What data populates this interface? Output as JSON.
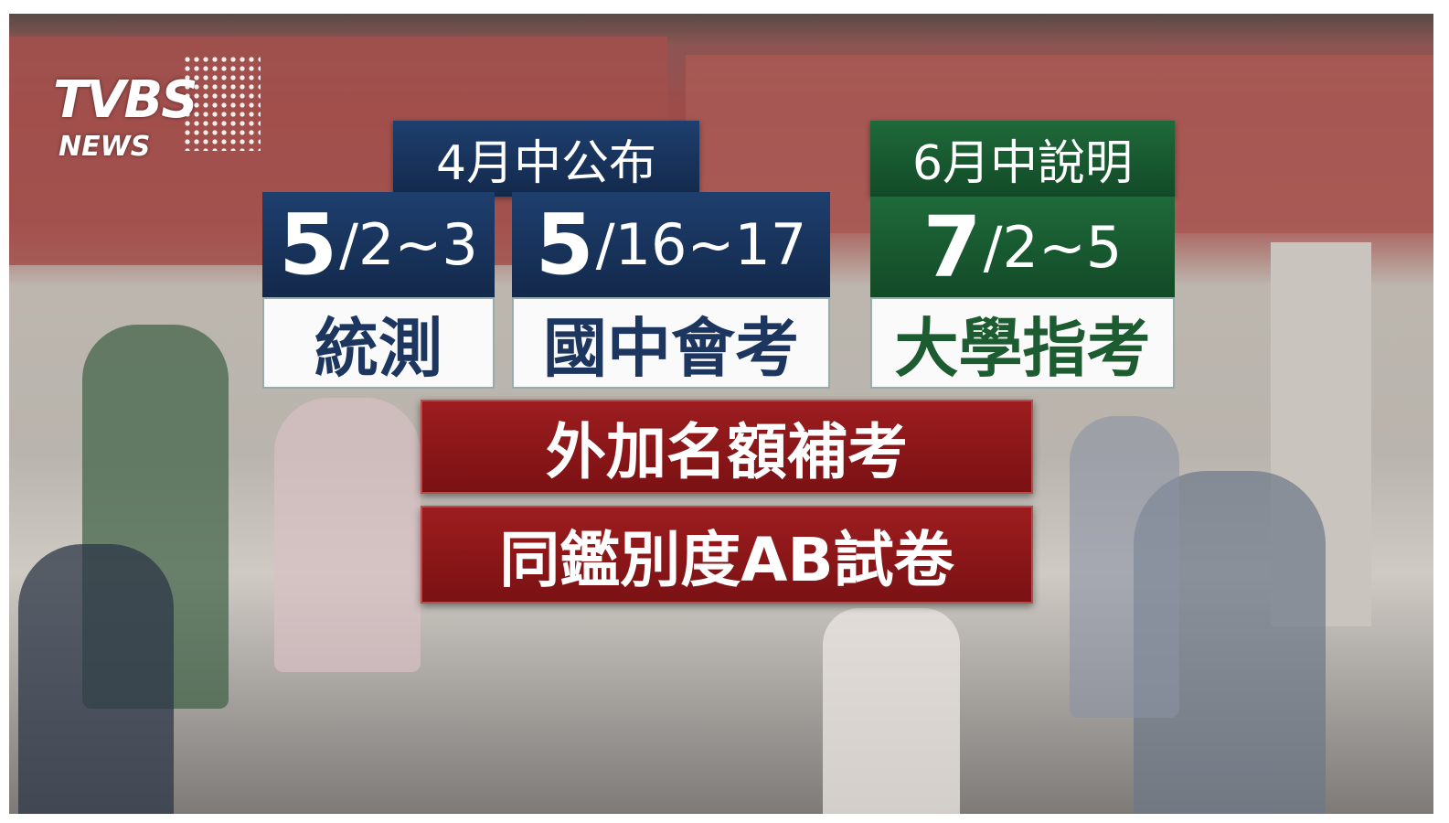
{
  "logo": {
    "brand": "TVBS",
    "sub": "NEWS"
  },
  "headers": [
    {
      "text": "4月中公布"
    },
    {
      "text": "6月中說明"
    }
  ],
  "exams": [
    {
      "month": "5",
      "days": "/2~3",
      "name": "統測"
    },
    {
      "month": "5",
      "days": "/16~17",
      "name": "國中會考"
    },
    {
      "month": "7",
      "days": "/2~5",
      "name": "大學指考"
    }
  ],
  "notes": [
    "外加名額補考",
    "同鑑別度AB試卷"
  ]
}
